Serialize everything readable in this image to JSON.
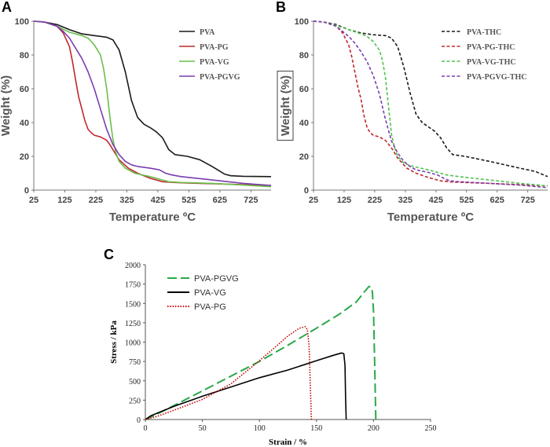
{
  "colors": {
    "pva": "#1a1a1a",
    "pg": "#c0282d",
    "vg": "#6abf4b",
    "pgvg": "#7a3db0",
    "pva_thc": "#1a1a1a",
    "pg_thc": "#c0282d",
    "vg_thc": "#4fc24f",
    "pgvg_thc": "#7a3db0",
    "c_pgvg": "#2aa84a",
    "c_vg": "#000000",
    "c_pg": "#c00000"
  },
  "chart_data": [
    {
      "id": "A",
      "panel_label": "A",
      "type": "line",
      "xlabel": "Temperature ºC",
      "ylabel": "Weight (%)",
      "xlim": [
        25,
        790
      ],
      "ylim": [
        0,
        100
      ],
      "xticks": [
        25,
        125,
        225,
        325,
        425,
        525,
        625,
        725
      ],
      "yticks": [
        0,
        20,
        40,
        60,
        80,
        100
      ],
      "legend_position": "top-right",
      "series": [
        {
          "name": "PVA",
          "color_key": "pva",
          "dash": "solid",
          "x": [
            25,
            60,
            100,
            140,
            180,
            220,
            260,
            280,
            300,
            320,
            340,
            360,
            380,
            400,
            420,
            440,
            460,
            480,
            520,
            560,
            600,
            640,
            660,
            700,
            790
          ],
          "y": [
            100,
            99.5,
            98,
            95,
            92.5,
            91.5,
            90.5,
            89,
            83,
            70,
            53,
            43,
            39,
            37,
            34.5,
            31,
            24,
            21,
            20,
            18,
            14,
            9.5,
            8.5,
            8.2,
            8
          ]
        },
        {
          "name": "PVA-PG",
          "color_key": "pg",
          "dash": "solid",
          "x": [
            25,
            60,
            100,
            120,
            140,
            150,
            160,
            170,
            180,
            190,
            200,
            210,
            220,
            240,
            260,
            270,
            280,
            300,
            330,
            360,
            400,
            440,
            480,
            520,
            600,
            700,
            790
          ],
          "y": [
            100,
            99.5,
            97,
            93,
            85,
            76,
            65,
            55,
            48,
            41,
            36,
            34,
            32.5,
            31.5,
            29.5,
            27,
            24,
            18,
            13,
            10,
            7,
            5,
            4.5,
            4.2,
            3.8,
            3.2,
            2.8
          ]
        },
        {
          "name": "PVA-VG",
          "color_key": "vg",
          "dash": "solid",
          "x": [
            25,
            60,
            100,
            140,
            180,
            200,
            220,
            240,
            250,
            260,
            270,
            280,
            290,
            300,
            320,
            350,
            400,
            440,
            460,
            500,
            600,
            700,
            790
          ],
          "y": [
            100,
            99.5,
            97,
            93.5,
            91.5,
            90,
            86,
            80,
            72,
            60,
            44,
            30,
            22,
            17,
            13,
            10,
            8,
            6,
            5,
            4.5,
            4,
            3,
            2
          ]
        },
        {
          "name": "PVA-PGVG",
          "color_key": "pgvg",
          "dash": "solid",
          "x": [
            25,
            60,
            100,
            120,
            140,
            160,
            180,
            200,
            220,
            240,
            260,
            280,
            300,
            320,
            340,
            360,
            400,
            430,
            450,
            470,
            500,
            600,
            700,
            790
          ],
          "y": [
            100,
            99.5,
            97,
            94,
            90,
            84,
            78,
            70,
            60,
            48,
            36,
            27,
            21,
            17,
            15,
            14,
            13,
            12,
            10,
            9,
            8,
            6,
            4,
            2.8
          ]
        }
      ]
    },
    {
      "id": "B",
      "panel_label": "B",
      "type": "line",
      "xlabel": "Temperature ºC",
      "ylabel": "Weight (%)",
      "xlim": [
        25,
        790
      ],
      "ylim": [
        0,
        100
      ],
      "xticks": [
        25,
        125,
        225,
        325,
        425,
        525,
        625,
        725
      ],
      "yticks": [
        0,
        20,
        40,
        60,
        80,
        100
      ],
      "legend_position": "top-right",
      "series": [
        {
          "name": "PVA-THC",
          "color_key": "pva_thc",
          "dash": "dashed",
          "x": [
            25,
            60,
            100,
            140,
            180,
            220,
            260,
            280,
            300,
            320,
            340,
            360,
            380,
            400,
            420,
            440,
            460,
            480,
            520,
            560,
            600,
            650,
            700,
            750,
            790
          ],
          "y": [
            100,
            99.5,
            98,
            95,
            93,
            92,
            91.5,
            90,
            85,
            73,
            58,
            45,
            40,
            37.5,
            35,
            31,
            25,
            21,
            20,
            18.5,
            17,
            15,
            13,
            11,
            8
          ]
        },
        {
          "name": "PVA-PG-THC",
          "color_key": "pg_thc",
          "dash": "dashed",
          "x": [
            25,
            60,
            100,
            120,
            140,
            150,
            160,
            170,
            180,
            190,
            200,
            210,
            220,
            240,
            260,
            280,
            300,
            330,
            360,
            400,
            440,
            480,
            520,
            600,
            700,
            790
          ],
          "y": [
            100,
            99.5,
            97,
            93,
            86,
            79,
            70,
            61,
            54,
            44,
            37,
            34,
            32.5,
            31.5,
            29.5,
            25,
            19,
            13,
            10,
            7.5,
            5.5,
            4.8,
            4.5,
            4,
            3.2,
            2.5
          ]
        },
        {
          "name": "PVA-VG-THC",
          "color_key": "vg_thc",
          "dash": "dashed",
          "x": [
            25,
            60,
            100,
            140,
            180,
            200,
            220,
            240,
            250,
            260,
            270,
            280,
            290,
            300,
            320,
            350,
            400,
            440,
            460,
            500,
            600,
            700,
            790
          ],
          "y": [
            100,
            99.5,
            97.5,
            95,
            92.5,
            91,
            88,
            83,
            77,
            67,
            50,
            33,
            25,
            20,
            16,
            14,
            12,
            10,
            9,
            8,
            6,
            4,
            2.5
          ]
        },
        {
          "name": "PVA-PGVG-THC",
          "color_key": "pgvg_thc",
          "dash": "dashed",
          "x": [
            25,
            60,
            100,
            120,
            140,
            160,
            180,
            200,
            220,
            240,
            260,
            280,
            300,
            320,
            340,
            360,
            400,
            430,
            450,
            470,
            500,
            600,
            700,
            790
          ],
          "y": [
            100,
            99.5,
            97,
            94,
            91,
            87,
            82,
            76,
            68,
            57,
            42,
            29,
            22,
            17,
            14,
            12,
            10.5,
            9,
            7,
            5.5,
            5,
            4,
            3,
            1.5
          ]
        }
      ]
    },
    {
      "id": "C",
      "panel_label": "C",
      "type": "line",
      "xlabel": "Strain / %",
      "ylabel": "Stress / kPa",
      "xlim": [
        0,
        250
      ],
      "ylim": [
        0,
        2000
      ],
      "xticks": [
        0,
        50,
        100,
        150,
        200,
        250
      ],
      "yticks": [
        0,
        250,
        500,
        750,
        1000,
        1250,
        1500,
        1750,
        2000
      ],
      "legend_position": "top-left",
      "series": [
        {
          "name": "PVA-PGVG",
          "color_key": "c_pgvg",
          "dash": "longdash",
          "x": [
            0,
            10,
            25,
            50,
            75,
            100,
            125,
            150,
            170,
            185,
            192,
            196,
            198,
            199,
            200,
            201,
            202
          ],
          "y": [
            0,
            70,
            180,
            370,
            560,
            750,
            960,
            1180,
            1360,
            1520,
            1650,
            1720,
            1710,
            1650,
            1400,
            700,
            0
          ]
        },
        {
          "name": "PVA-VG",
          "color_key": "c_vg",
          "dash": "solid",
          "x": [
            0,
            5,
            25,
            50,
            75,
            100,
            125,
            150,
            165,
            172,
            174,
            175,
            175.5,
            176
          ],
          "y": [
            0,
            50,
            170,
            300,
            420,
            540,
            640,
            760,
            830,
            860,
            850,
            700,
            300,
            0
          ]
        },
        {
          "name": "PVA-PG",
          "color_key": "c_pg",
          "dash": "dotted",
          "x": [
            0,
            10,
            25,
            50,
            75,
            100,
            115,
            125,
            135,
            140,
            142,
            143.5,
            144.5,
            145.5
          ],
          "y": [
            0,
            40,
            120,
            260,
            460,
            760,
            950,
            1080,
            1180,
            1200,
            1160,
            950,
            500,
            0
          ]
        }
      ]
    }
  ]
}
